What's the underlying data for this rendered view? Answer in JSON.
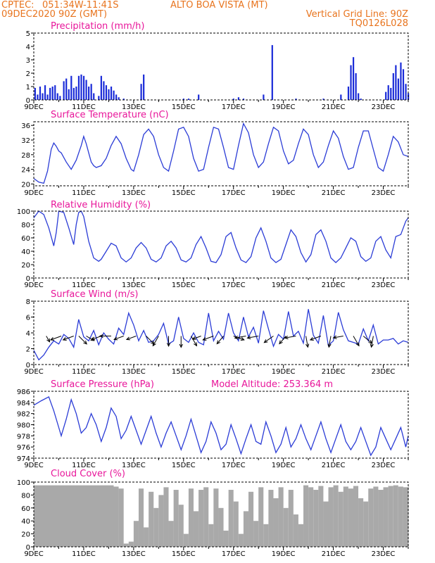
{
  "header": {
    "source": "CPTEC:",
    "coords": "051:34W-11:41S",
    "station": "ALTO BOA VISTA (MT)",
    "init_time": "09DEC2020 90Z (GMT)",
    "grid_note": "Vertical Grid Line: 90Z",
    "model_code": "TQ0126L028"
  },
  "colors": {
    "header": "#e8741e",
    "title": "#e8169a",
    "line": "#2b3cd6",
    "bar": "#1a2bd8",
    "cloud": "#a9a9a9",
    "arrow": "#000000"
  },
  "x_tick_labels": [
    "9DEC",
    "11DEC",
    "13DEC",
    "15DEC",
    "17DEC",
    "19DEC",
    "21DEC",
    "23DEC"
  ],
  "chart_data": [
    {
      "type": "bar",
      "title": "Precipitation (mm/h)",
      "ylim": [
        0,
        5
      ],
      "yticks": [
        0,
        1,
        2,
        3,
        4,
        5
      ],
      "xlim": [
        0,
        15
      ],
      "x": [
        0.05,
        0.15,
        0.25,
        0.35,
        0.45,
        0.55,
        0.65,
        0.75,
        0.85,
        0.95,
        1.05,
        1.2,
        1.3,
        1.4,
        1.5,
        1.6,
        1.7,
        1.8,
        1.9,
        2.0,
        2.1,
        2.2,
        2.3,
        2.4,
        2.6,
        2.7,
        2.8,
        2.9,
        3.0,
        3.1,
        3.2,
        3.3,
        3.4,
        3.6,
        4.3,
        4.4,
        6.0,
        6.2,
        6.6,
        8.0,
        8.2,
        8.4,
        9.2,
        9.55,
        10.5,
        11.6,
        12.3,
        12.6,
        12.7,
        12.8,
        12.9,
        13.0,
        13.1,
        14.1,
        14.2,
        14.3,
        14.4,
        14.5,
        14.6,
        14.7,
        14.8,
        14.9,
        15.0
      ],
      "values": [
        0.9,
        0.4,
        1.0,
        0.5,
        1.1,
        0.4,
        0.9,
        1.0,
        1.1,
        0.5,
        0.3,
        1.4,
        1.6,
        0.8,
        1.8,
        0.9,
        1.0,
        1.8,
        1.9,
        1.8,
        1.5,
        1.0,
        1.2,
        0.5,
        0.3,
        1.8,
        1.4,
        1.1,
        0.8,
        1.0,
        0.7,
        0.4,
        0.2,
        0.1,
        1.2,
        1.9,
        0.1,
        0.1,
        0.4,
        0.1,
        0.2,
        0.1,
        0.4,
        4.1,
        0.1,
        0.1,
        0.4,
        1.0,
        2.6,
        3.2,
        2.0,
        0.5,
        0.1,
        0.6,
        1.1,
        0.9,
        2.0,
        2.6,
        1.6,
        2.8,
        2.3,
        1.2,
        0.5
      ]
    },
    {
      "type": "line",
      "title": "Surface Temperature (nC)",
      "ylim": [
        19.5,
        37
      ],
      "yticks": [
        20,
        24,
        28,
        32,
        36
      ],
      "xlim": [
        0,
        15
      ],
      "x": [
        0,
        0.2,
        0.4,
        0.55,
        0.7,
        0.8,
        0.9,
        1.0,
        1.1,
        1.3,
        1.5,
        1.7,
        1.9,
        2.0,
        2.1,
        2.2,
        2.3,
        2.4,
        2.5,
        2.7,
        2.9,
        3.1,
        3.3,
        3.5,
        3.7,
        3.9,
        4.0,
        4.2,
        4.4,
        4.6,
        4.8,
        5.0,
        5.2,
        5.4,
        5.6,
        5.8,
        6.0,
        6.2,
        6.4,
        6.6,
        6.8,
        7.0,
        7.2,
        7.4,
        7.6,
        7.8,
        8.0,
        8.2,
        8.4,
        8.6,
        8.8,
        9.0,
        9.2,
        9.4,
        9.6,
        9.8,
        10.0,
        10.2,
        10.4,
        10.6,
        10.8,
        11.0,
        11.2,
        11.4,
        11.6,
        11.8,
        12.0,
        12.2,
        12.4,
        12.6,
        12.8,
        13.0,
        13.2,
        13.4,
        13.6,
        13.8,
        14.0,
        14.2,
        14.4,
        14.6,
        14.8,
        15.0
      ],
      "values": [
        21.5,
        20.5,
        20.2,
        23.5,
        29.5,
        31.2,
        30.3,
        29.0,
        28.5,
        26.0,
        24.0,
        26.5,
        30.5,
        33.0,
        31.0,
        28.5,
        26.0,
        25.0,
        24.5,
        25.0,
        27.0,
        30.5,
        33.0,
        31.0,
        27.0,
        24.0,
        23.5,
        28.0,
        33.5,
        35.0,
        33.0,
        28.0,
        24.5,
        23.5,
        29.0,
        35.0,
        35.5,
        33.0,
        27.0,
        23.5,
        24.0,
        30.0,
        35.5,
        35.0,
        30.0,
        24.5,
        24.0,
        30.5,
        36.5,
        34.0,
        28.0,
        24.5,
        26.0,
        31.0,
        35.5,
        34.5,
        29.0,
        25.5,
        26.5,
        31.0,
        35.0,
        33.5,
        28.0,
        24.5,
        26.0,
        30.5,
        34.5,
        32.5,
        27.5,
        24.0,
        24.5,
        30.0,
        34.5,
        34.5,
        29.5,
        24.5,
        23.5,
        28.0,
        33.0,
        31.5,
        28.0,
        27.5
      ]
    },
    {
      "type": "line",
      "title": "Relative Humidity (%)",
      "ylim": [
        0,
        100
      ],
      "yticks": [
        0,
        20,
        40,
        60,
        80,
        100
      ],
      "xlim": [
        0,
        15
      ],
      "x": [
        0,
        0.2,
        0.4,
        0.6,
        0.8,
        0.9,
        1.0,
        1.2,
        1.4,
        1.6,
        1.7,
        1.8,
        1.9,
        2.0,
        2.2,
        2.4,
        2.6,
        2.7,
        2.9,
        3.1,
        3.3,
        3.5,
        3.7,
        3.9,
        4.1,
        4.3,
        4.5,
        4.7,
        4.9,
        5.1,
        5.3,
        5.5,
        5.7,
        5.9,
        6.1,
        6.3,
        6.5,
        6.7,
        6.9,
        7.1,
        7.3,
        7.5,
        7.7,
        7.9,
        8.1,
        8.3,
        8.5,
        8.7,
        8.9,
        9.1,
        9.3,
        9.5,
        9.7,
        9.9,
        10.1,
        10.3,
        10.5,
        10.7,
        10.9,
        11.1,
        11.3,
        11.5,
        11.7,
        11.9,
        12.1,
        12.3,
        12.5,
        12.7,
        12.9,
        13.1,
        13.3,
        13.5,
        13.7,
        13.9,
        14.1,
        14.3,
        14.5,
        14.7,
        14.9,
        15.0
      ],
      "values": [
        90,
        100,
        95,
        75,
        48,
        68,
        100,
        98,
        75,
        50,
        80,
        98,
        100,
        92,
        55,
        30,
        25,
        28,
        40,
        52,
        48,
        30,
        24,
        30,
        45,
        53,
        45,
        28,
        24,
        30,
        48,
        55,
        45,
        27,
        24,
        30,
        50,
        62,
        45,
        25,
        23,
        35,
        62,
        68,
        45,
        27,
        23,
        32,
        60,
        75,
        55,
        30,
        23,
        28,
        50,
        72,
        62,
        38,
        24,
        35,
        65,
        72,
        55,
        30,
        23,
        30,
        45,
        60,
        55,
        32,
        25,
        30,
        55,
        62,
        42,
        30,
        62,
        65,
        85,
        90
      ]
    },
    {
      "type": "line",
      "title": "Surface Wind (m/s)",
      "ylim": [
        0,
        8
      ],
      "yticks": [
        0,
        2,
        4,
        6,
        8
      ],
      "xlim": [
        0,
        15
      ],
      "x": [
        0,
        0.2,
        0.4,
        0.6,
        0.8,
        1.0,
        1.2,
        1.4,
        1.6,
        1.8,
        2.0,
        2.2,
        2.4,
        2.6,
        2.8,
        3.0,
        3.2,
        3.4,
        3.6,
        3.8,
        4.0,
        4.2,
        4.4,
        4.6,
        4.8,
        5.0,
        5.2,
        5.4,
        5.6,
        5.8,
        6.0,
        6.2,
        6.4,
        6.6,
        6.8,
        7.0,
        7.2,
        7.4,
        7.6,
        7.8,
        8.0,
        8.2,
        8.4,
        8.6,
        8.8,
        9.0,
        9.2,
        9.4,
        9.6,
        9.8,
        10.0,
        10.2,
        10.4,
        10.6,
        10.8,
        11.0,
        11.2,
        11.4,
        11.6,
        11.8,
        12.0,
        12.2,
        12.4,
        12.6,
        12.8,
        13.0,
        13.2,
        13.4,
        13.6,
        13.8,
        14.0,
        14.2,
        14.4,
        14.6,
        14.8,
        15.0
      ],
      "values": [
        1.8,
        0.6,
        1.2,
        2.2,
        3.0,
        2.6,
        3.8,
        3.3,
        2.2,
        5.7,
        3.5,
        3.0,
        4.3,
        2.5,
        4.0,
        3.2,
        2.6,
        4.6,
        3.8,
        6.5,
        5.0,
        3.0,
        4.3,
        2.8,
        3.0,
        3.8,
        5.2,
        2.6,
        3.0,
        6.0,
        3.3,
        2.8,
        4.0,
        2.8,
        2.5,
        6.5,
        3.0,
        4.2,
        3.2,
        6.5,
        4.0,
        3.0,
        6.0,
        3.5,
        4.7,
        2.7,
        6.8,
        4.5,
        2.3,
        3.8,
        3.2,
        6.7,
        3.6,
        4.2,
        2.7,
        7.0,
        3.7,
        2.7,
        6.2,
        2.4,
        3.0,
        6.6,
        4.4,
        3.0,
        2.8,
        2.6,
        4.5,
        3.0,
        5.0,
        2.6,
        3.1,
        3.1,
        3.3,
        2.6,
        3.0,
        2.8
      ]
    },
    {
      "type": "line",
      "title": "Surface Pressure (hPa)",
      "annotation": "Model Altitude: 253.364 m",
      "ylim": [
        974,
        986
      ],
      "yticks": [
        974,
        976,
        978,
        980,
        982,
        984,
        986
      ],
      "xlim": [
        0,
        15
      ],
      "x": [
        0,
        0.3,
        0.6,
        0.8,
        1.0,
        1.1,
        1.3,
        1.5,
        1.7,
        1.9,
        2.1,
        2.3,
        2.5,
        2.7,
        2.9,
        3.1,
        3.3,
        3.5,
        3.7,
        3.9,
        4.1,
        4.3,
        4.5,
        4.7,
        4.9,
        5.1,
        5.3,
        5.5,
        5.7,
        5.9,
        6.1,
        6.3,
        6.5,
        6.7,
        6.9,
        7.1,
        7.3,
        7.5,
        7.7,
        7.9,
        8.1,
        8.3,
        8.5,
        8.7,
        8.9,
        9.1,
        9.3,
        9.5,
        9.7,
        9.9,
        10.1,
        10.3,
        10.5,
        10.7,
        10.9,
        11.1,
        11.3,
        11.5,
        11.7,
        11.9,
        12.1,
        12.3,
        12.5,
        12.7,
        12.9,
        13.1,
        13.3,
        13.5,
        13.7,
        13.9,
        14.1,
        14.3,
        14.5,
        14.7,
        14.9,
        15.0
      ],
      "values": [
        983.5,
        984.3,
        985.0,
        982.5,
        979.5,
        978.0,
        981.0,
        984.5,
        982.0,
        978.5,
        979.5,
        982.0,
        980.0,
        977.0,
        979.5,
        983.0,
        981.5,
        977.5,
        979.0,
        981.5,
        979.0,
        976.5,
        979.0,
        981.5,
        978.5,
        976.0,
        978.5,
        980.5,
        978.0,
        975.5,
        978.0,
        981.0,
        978.0,
        975.0,
        977.0,
        980.5,
        978.5,
        975.5,
        976.5,
        980.0,
        977.5,
        974.8,
        977.5,
        980.0,
        977.0,
        976.5,
        980.5,
        978.0,
        975.0,
        976.5,
        979.5,
        976.0,
        977.5,
        980.0,
        977.5,
        975.5,
        978.0,
        980.5,
        977.5,
        975.0,
        977.5,
        980.0,
        977.0,
        975.5,
        977.0,
        979.5,
        977.0,
        974.5,
        976.0,
        979.5,
        977.5,
        975.5,
        977.5,
        979.5,
        976.0,
        978.0
      ]
    },
    {
      "type": "area",
      "title": "Cloud Cover (%)",
      "ylim": [
        0,
        100
      ],
      "yticks": [
        0,
        20,
        40,
        60,
        80,
        100
      ],
      "xlim": [
        0,
        15
      ],
      "segments_x": [
        0,
        3.2,
        3.4,
        3.6,
        3.8,
        4.0,
        4.2,
        4.4,
        4.6,
        4.8,
        5.0,
        5.2,
        5.4,
        5.6,
        5.8,
        6.0,
        6.2,
        6.4,
        6.6,
        6.8,
        7.0,
        7.2,
        7.4,
        7.6,
        7.8,
        8.0,
        8.2,
        8.4,
        8.6,
        8.8,
        9.0,
        9.2,
        9.4,
        9.6,
        9.8,
        10.0,
        10.2,
        10.4,
        10.6,
        10.8,
        11.0,
        11.2,
        11.4,
        11.6,
        11.8,
        12.0,
        12.2,
        12.4,
        12.6,
        12.8,
        13.0,
        13.2,
        13.4,
        13.6,
        13.8,
        14.0,
        14.2,
        14.4,
        14.6,
        14.8,
        15.0
      ],
      "values": [
        95,
        93,
        90,
        5,
        8,
        40,
        90,
        30,
        85,
        60,
        80,
        92,
        40,
        88,
        65,
        20,
        90,
        55,
        88,
        92,
        35,
        90,
        60,
        25,
        88,
        70,
        20,
        55,
        85,
        40,
        92,
        35,
        88,
        75,
        92,
        60,
        88,
        50,
        35,
        95,
        92,
        88,
        94,
        70,
        92,
        95,
        85,
        93,
        90,
        94,
        75,
        70,
        90,
        93,
        88,
        92,
        94,
        95,
        93,
        92,
        95
      ]
    }
  ],
  "wind_arrows": {
    "x": [
      0.5,
      1.1,
      1.6,
      1.8,
      2.1,
      2.7,
      3.1,
      3.6,
      4.1,
      4.5,
      5.0,
      5.4,
      5.9,
      6.3,
      6.7,
      7.2,
      7.6,
      8.0,
      8.5,
      9.0,
      9.6,
      10.1,
      10.5,
      10.9,
      11.5,
      11.9,
      12.4,
      12.8,
      13.2,
      13.6
    ],
    "dir_deg": [
      300,
      200,
      200,
      315,
      330,
      200,
      180,
      200,
      200,
      315,
      240,
      270,
      270,
      300,
      200,
      200,
      230,
      340,
      190,
      190,
      215,
      230,
      190,
      280,
      200,
      260,
      190,
      300,
      320,
      260
    ],
    "len": [
      0.6,
      1.0,
      1.0,
      1.0,
      0.8,
      0.9,
      1.0,
      0.9,
      0.9,
      1.0,
      1.0,
      0.9,
      1.0,
      1.0,
      0.8,
      1.0,
      0.9,
      1.0,
      1.0,
      1.0,
      1.0,
      0.9,
      1.0,
      1.0,
      1.0,
      1.0,
      0.9,
      1.0,
      1.0,
      1.0
    ]
  }
}
